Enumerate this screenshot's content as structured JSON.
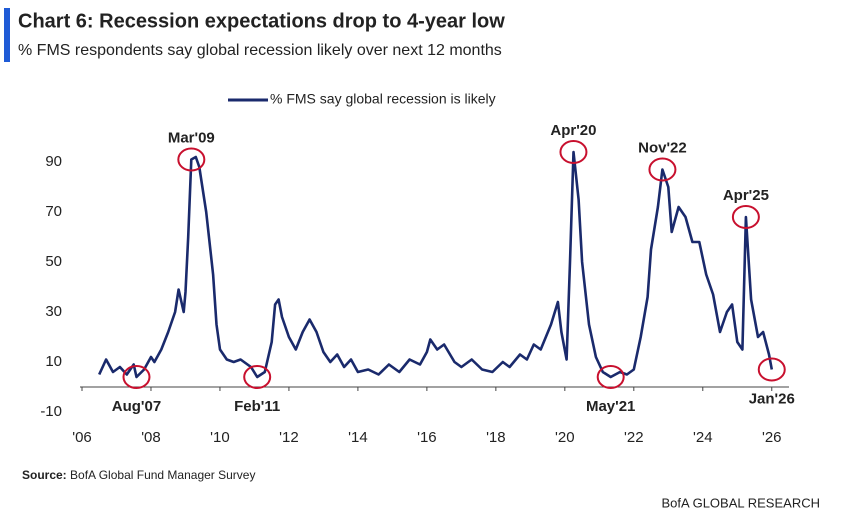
{
  "chart_data": {
    "type": "line",
    "title": "Chart 6: Recession expectations drop to 4-year low",
    "subtitle": "% FMS respondents say global recession likely over next 12 months",
    "source": {
      "label": "Source:",
      "text": "BofA Global Fund Manager Survey"
    },
    "footer": "BofA GLOBAL RESEARCH",
    "x": [
      2006.5,
      2006.7,
      2006.9,
      2007.1,
      2007.3,
      2007.5,
      2007.58,
      2007.8,
      2008.0,
      2008.1,
      2008.3,
      2008.5,
      2008.7,
      2008.8,
      2008.95,
      2009.0,
      2009.08,
      2009.17,
      2009.3,
      2009.4,
      2009.6,
      2009.8,
      2009.9,
      2010.0,
      2010.2,
      2010.4,
      2010.6,
      2010.8,
      2010.9,
      2011.08,
      2011.3,
      2011.5,
      2011.6,
      2011.7,
      2011.8,
      2012.0,
      2012.2,
      2012.4,
      2012.6,
      2012.8,
      2013.0,
      2013.2,
      2013.4,
      2013.6,
      2013.8,
      2014.0,
      2014.3,
      2014.6,
      2014.9,
      2015.2,
      2015.5,
      2015.8,
      2016.0,
      2016.1,
      2016.3,
      2016.5,
      2016.8,
      2017.0,
      2017.3,
      2017.6,
      2017.9,
      2018.2,
      2018.4,
      2018.7,
      2018.9,
      2019.1,
      2019.3,
      2019.6,
      2019.8,
      2019.9,
      2020.05,
      2020.15,
      2020.25,
      2020.4,
      2020.5,
      2020.7,
      2020.9,
      2021.1,
      2021.33,
      2021.6,
      2021.8,
      2022.0,
      2022.2,
      2022.4,
      2022.5,
      2022.7,
      2022.83,
      2023.0,
      2023.1,
      2023.3,
      2023.5,
      2023.7,
      2023.9,
      2024.1,
      2024.3,
      2024.5,
      2024.7,
      2024.85,
      2025.0,
      2025.15,
      2025.25,
      2025.4,
      2025.6,
      2025.75,
      2025.92,
      2026.0
    ],
    "series": [
      {
        "name": "% FMS say global recession is likely",
        "color": "#1a2a6c",
        "values": [
          5,
          11,
          6,
          8,
          5,
          9,
          4,
          7,
          12,
          10,
          15,
          22,
          30,
          39,
          30,
          38,
          60,
          91,
          92,
          88,
          70,
          45,
          25,
          15,
          11,
          10,
          11,
          9,
          8,
          4,
          6,
          18,
          33,
          35,
          28,
          20,
          15,
          22,
          27,
          22,
          14,
          10,
          13,
          8,
          11,
          6,
          7,
          5,
          9,
          6,
          11,
          9,
          14,
          19,
          15,
          17,
          10,
          8,
          11,
          7,
          6,
          10,
          8,
          13,
          11,
          17,
          15,
          25,
          34,
          22,
          11,
          50,
          94,
          75,
          50,
          25,
          12,
          6,
          4,
          6,
          5,
          7,
          20,
          36,
          55,
          72,
          87,
          80,
          62,
          72,
          68,
          58,
          58,
          45,
          37,
          22,
          30,
          33,
          18,
          15,
          68,
          35,
          20,
          22,
          13,
          7
        ]
      }
    ],
    "annotations": [
      {
        "label": "Aug'07",
        "x": 2007.58,
        "y": 4
      },
      {
        "label": "Mar'09",
        "x": 2009.17,
        "y": 91
      },
      {
        "label": "Feb'11",
        "x": 2011.08,
        "y": 4
      },
      {
        "label": "Apr'20",
        "x": 2020.25,
        "y": 94
      },
      {
        "label": "May'21",
        "x": 2021.33,
        "y": 4
      },
      {
        "label": "Nov'22",
        "x": 2022.83,
        "y": 87
      },
      {
        "label": "Apr'25",
        "x": 2025.25,
        "y": 68
      },
      {
        "label": "Jan'26",
        "x": 2026.0,
        "y": 7
      }
    ],
    "annotation_color": "#c8102e",
    "xlim": [
      2006,
      2026.5
    ],
    "ylim": [
      -10,
      100
    ],
    "xticks": [
      {
        "value": 2006,
        "label": "'06"
      },
      {
        "value": 2008,
        "label": "'08"
      },
      {
        "value": 2010,
        "label": "'10"
      },
      {
        "value": 2012,
        "label": "'12"
      },
      {
        "value": 2014,
        "label": "'14"
      },
      {
        "value": 2016,
        "label": "'16"
      },
      {
        "value": 2018,
        "label": "'18"
      },
      {
        "value": 2020,
        "label": "'20"
      },
      {
        "value": 2022,
        "label": "'22"
      },
      {
        "value": 2024,
        "label": "'24"
      },
      {
        "value": 2026,
        "label": "'26"
      }
    ],
    "yticks": [
      -10,
      10,
      30,
      50,
      70,
      90
    ],
    "grid": false,
    "legend": "top"
  }
}
